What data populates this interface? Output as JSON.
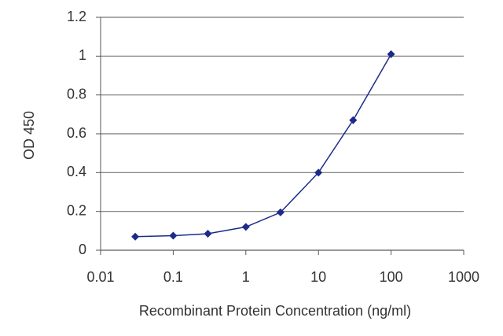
{
  "chart_data": {
    "type": "line",
    "x_label": "Recombinant Protein Concentration (ng/ml)",
    "y_label": "OD 450",
    "x": [
      0.03,
      0.1,
      0.3,
      1,
      3,
      10,
      30,
      100
    ],
    "series": [
      {
        "color": "#1c2a8a",
        "values": [
          0.07,
          0.075,
          0.085,
          0.12,
          0.195,
          0.4,
          0.67,
          1.01
        ]
      }
    ],
    "xlim": [
      0.01,
      1000
    ],
    "xticks": [
      0.01,
      0.1,
      1,
      10,
      100,
      1000
    ],
    "xscale": "log",
    "ylim": [
      0,
      1.2
    ],
    "yticks": [
      0,
      0.2,
      0.4,
      0.6,
      0.8,
      1,
      1.2
    ],
    "grid": true
  }
}
